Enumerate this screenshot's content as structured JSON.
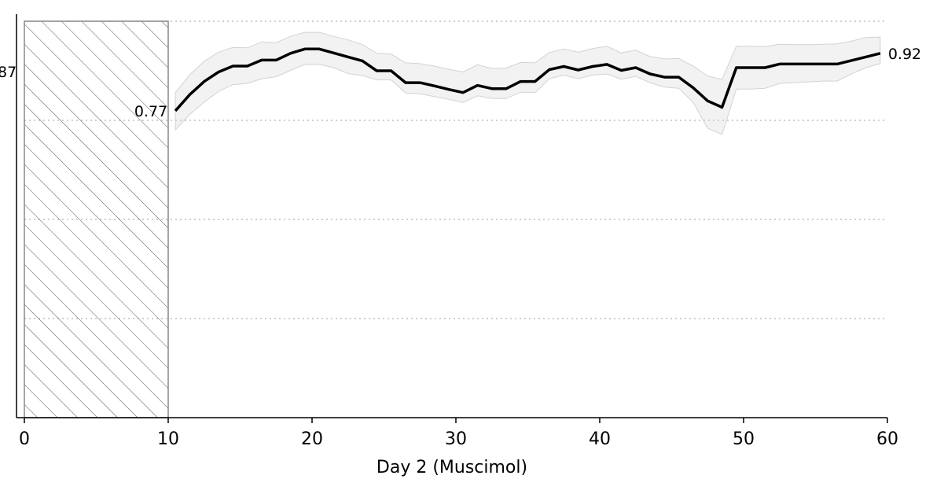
{
  "chart_data": {
    "type": "line",
    "title": "",
    "xlabel": "Day 2 (Muscimol)",
    "ylabel": "",
    "xlim": [
      0,
      60
    ],
    "ylim": [
      0.0,
      1.0
    ],
    "xticks": [
      0,
      10,
      20,
      30,
      40,
      50,
      60
    ],
    "xtick_labels": [
      "0",
      "10",
      "20",
      "30",
      "40",
      "50",
      "60"
    ],
    "ytick_cut_label": "87",
    "gridlines_y": [
      0.25,
      0.5,
      0.75,
      1.0
    ],
    "grid": "horizontal dotted",
    "legend": "none",
    "shaded_region": {
      "x_start": 0,
      "x_end": 10,
      "pattern": "diagonal hatch"
    },
    "series": [
      {
        "x": [
          10.5,
          11.5,
          12.5,
          13.5,
          14.5,
          15.5,
          16.5,
          17.5,
          18.5,
          19.5,
          20.5,
          21.5,
          22.5,
          23.5,
          24.5,
          25.5,
          26.5,
          27.5,
          28.5,
          29.5,
          30.5,
          31.5,
          32.5,
          33.5,
          34.5,
          35.5,
          36.5,
          37.5,
          38.5,
          39.5,
          40.5,
          41.5,
          42.5,
          43.5,
          44.5,
          45.5,
          46.5,
          47.5,
          48.5,
          49.5,
          50.5,
          51.5,
          52.5,
          53.5,
          54.5,
          55.5,
          56.5,
          57.5,
          58.5,
          59.5
        ],
        "y": [
          0.774,
          0.815,
          0.848,
          0.872,
          0.887,
          0.887,
          0.902,
          0.902,
          0.919,
          0.93,
          0.93,
          0.92,
          0.91,
          0.9,
          0.875,
          0.875,
          0.845,
          0.845,
          0.837,
          0.828,
          0.82,
          0.838,
          0.83,
          0.83,
          0.848,
          0.848,
          0.878,
          0.886,
          0.877,
          0.886,
          0.891,
          0.876,
          0.883,
          0.867,
          0.859,
          0.859,
          0.832,
          0.799,
          0.783,
          0.883,
          0.883,
          0.883,
          0.892,
          0.892,
          0.892,
          0.892,
          0.892,
          0.901,
          0.91,
          0.919
        ],
        "lower": [
          0.726,
          0.765,
          0.796,
          0.823,
          0.84,
          0.843,
          0.855,
          0.86,
          0.876,
          0.891,
          0.891,
          0.883,
          0.868,
          0.863,
          0.852,
          0.852,
          0.819,
          0.817,
          0.81,
          0.803,
          0.795,
          0.812,
          0.805,
          0.805,
          0.821,
          0.82,
          0.855,
          0.864,
          0.855,
          0.864,
          0.867,
          0.854,
          0.861,
          0.845,
          0.834,
          0.831,
          0.795,
          0.73,
          0.714,
          0.829,
          0.829,
          0.831,
          0.843,
          0.845,
          0.847,
          0.849,
          0.849,
          0.867,
          0.883,
          0.893
        ],
        "upper": [
          0.82,
          0.865,
          0.899,
          0.922,
          0.934,
          0.933,
          0.948,
          0.946,
          0.962,
          0.972,
          0.972,
          0.962,
          0.953,
          0.941,
          0.919,
          0.917,
          0.895,
          0.893,
          0.887,
          0.879,
          0.872,
          0.89,
          0.881,
          0.882,
          0.896,
          0.895,
          0.921,
          0.93,
          0.922,
          0.931,
          0.937,
          0.92,
          0.927,
          0.911,
          0.905,
          0.906,
          0.887,
          0.862,
          0.853,
          0.937,
          0.937,
          0.936,
          0.942,
          0.941,
          0.941,
          0.942,
          0.943,
          0.95,
          0.959,
          0.96
        ]
      }
    ],
    "data_labels": [
      {
        "text": "0.77",
        "x": 10.5,
        "y": 0.774
      },
      {
        "text": "0.92",
        "x": 59.5,
        "y": 0.919
      }
    ],
    "colors": {
      "line": "#000000",
      "band": "#d3d3d3",
      "grid": "#b0b0b0",
      "hatch": "#555555",
      "axis": "#000000"
    }
  }
}
